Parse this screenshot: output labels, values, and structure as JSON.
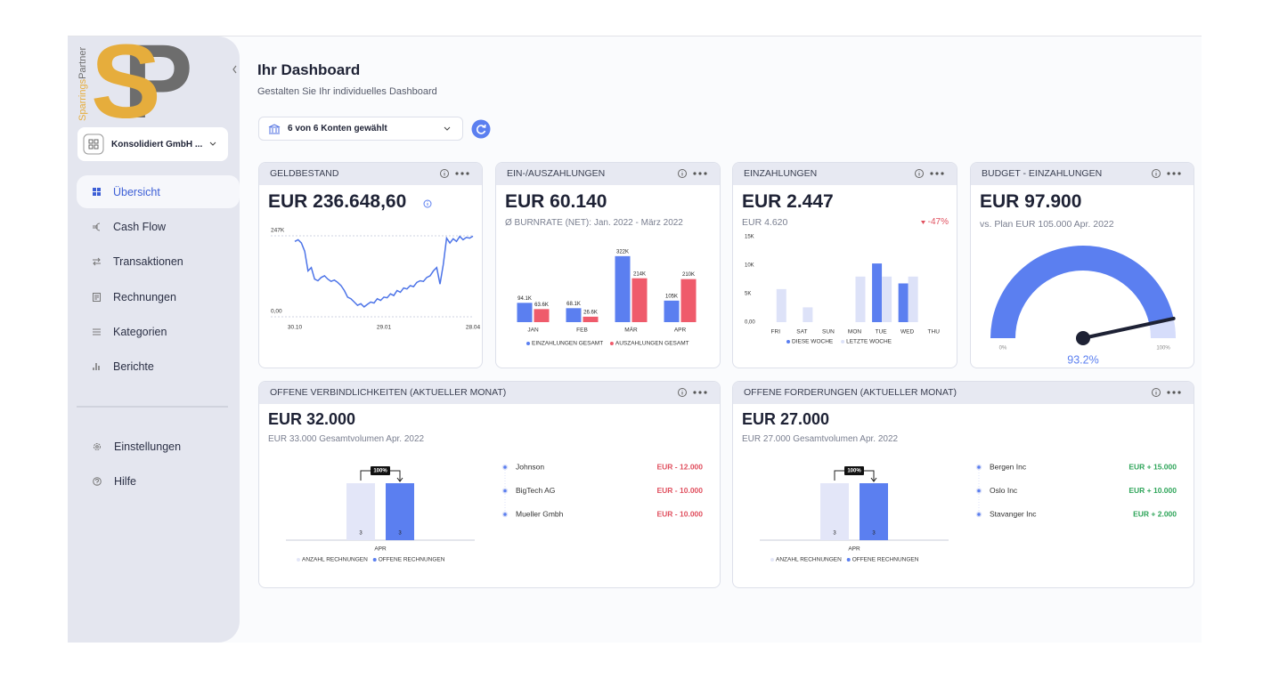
{
  "sidebar": {
    "logo": {
      "letters": [
        "S",
        "P"
      ],
      "wordmark": [
        "Sparrings",
        "Partner"
      ]
    },
    "company": "Konsolidiert GmbH ...",
    "nav": [
      "Übersicht",
      "Cash Flow",
      "Transaktionen",
      "Rechnungen",
      "Kategorien",
      "Berichte"
    ],
    "footer_nav": [
      "Einstellungen",
      "Hilfe"
    ]
  },
  "header": {
    "title": "Ihr Dashboard",
    "subtitle": "Gestalten Sie Ihr individuelles Dashboard",
    "accounts": "6 von 6  Konten gewählt"
  },
  "cards": [
    {
      "title": "GELDBESTAND",
      "amount": "EUR 236.648,60",
      "chart_data": {
        "type": "line",
        "color": "#4d74e8",
        "grid": true,
        "values": [
          230000,
          235000,
          225000,
          200000,
          140000,
          150000,
          115000,
          110000,
          120000,
          125000,
          115000,
          108000,
          112000,
          105000,
          95000,
          80000,
          60000,
          55000,
          45000,
          35000,
          40000,
          30000,
          38000,
          45000,
          42000,
          55000,
          50000,
          60000,
          58000,
          70000,
          65000,
          80000,
          75000,
          88000,
          85000,
          95000,
          92000,
          105000,
          110000,
          108000,
          120000,
          125000,
          140000,
          150000,
          100000,
          160000,
          240000,
          225000,
          238000,
          230000,
          245000,
          235000,
          242000,
          240000,
          246000
        ],
        "xlim": [
          0,
          54
        ],
        "xticks": [
          {
            "value": 0,
            "label": "30.10"
          },
          {
            "value": 27,
            "label": "29.01"
          },
          {
            "value": 54,
            "label": "28.04"
          }
        ],
        "ylim": [
          0,
          247000
        ],
        "yticks": [
          {
            "value": 0,
            "label": "0,00"
          },
          {
            "value": 247000,
            "label": "247K"
          }
        ]
      }
    },
    {
      "title": "EIN-/AUSZAHLUNGEN",
      "amount": "EUR 60.140",
      "subtitle": "Ø BURNRATE (NET): Jan. 2022 - März 2022",
      "chart_data": {
        "type": "bar",
        "categories": [
          "JAN",
          "FEB",
          "MÄR",
          "APR"
        ],
        "series": [
          {
            "name": "EINZAHLUNGEN GESAMT",
            "color": "#5b7ff0",
            "values": [
              94100,
              68100,
              322000,
              105000
            ],
            "value_labels": [
              "94.1K",
              "68.1K",
              "322K",
              "105K"
            ]
          },
          {
            "name": "AUSZAHLUNGEN GESAMT",
            "color": "#ef5b6b",
            "values": [
              63600,
              26600,
              214000,
              210000
            ],
            "value_labels": [
              "63.6K",
              "26.6K",
              "214K",
              "210K"
            ]
          }
        ],
        "ylim": [
          0,
          330000
        ]
      }
    },
    {
      "title": "EINZAHLUNGEN",
      "amount": "EUR 2.447",
      "comparison": "EUR 4.620",
      "change": "-47%",
      "chart_data": {
        "type": "bar",
        "categories": [
          "FRI",
          "SAT",
          "SUN",
          "MON",
          "TUE",
          "WED",
          "THU"
        ],
        "series": [
          {
            "name": "DIESE WOCHE",
            "color": "#5b7ff0",
            "values": [
              null,
              null,
              null,
              null,
              10300,
              6800,
              null
            ]
          },
          {
            "name": "LETZTE WOCHE",
            "color": "#dde2f8",
            "values": [
              5800,
              2600,
              0,
              8000,
              8000,
              8000,
              0
            ]
          }
        ],
        "ylim": [
          0,
          15000
        ],
        "yticks": [
          {
            "value": 0,
            "label": "0,00"
          },
          {
            "value": 5000,
            "label": "5K"
          },
          {
            "value": 10000,
            "label": "10K"
          },
          {
            "value": 15000,
            "label": "15K"
          }
        ]
      }
    },
    {
      "title": "BUDGET - EINZAHLUNGEN",
      "amount": "EUR 97.900",
      "subtitle": "vs. Plan EUR 105.000  Apr. 2022",
      "chart_data": {
        "type": "gauge",
        "value": 93.2,
        "value_label": "93.2%",
        "color": "#5b7ff0",
        "track_color": "#d6ddfb",
        "needle_color": "#1e2235",
        "ylim": [
          0,
          100
        ],
        "yticks": [
          {
            "value": 0,
            "label": "0%"
          },
          {
            "value": 100,
            "label": "100%"
          }
        ]
      }
    },
    {
      "title": "OFFENE VERBINDLICHKEITEN (AKTUELLER MONAT)",
      "amount": "EUR 32.000",
      "subtitle": "EUR 33.000  Gesamtvolumen  Apr. 2022",
      "chart_data": {
        "type": "bar",
        "categories": [
          "APR"
        ],
        "series": [
          {
            "name": "ANZAHL RECHNUNGEN",
            "color": "#e3e6f8",
            "values": [
              3
            ]
          },
          {
            "name": "OFFENE RECHNUNGEN",
            "color": "#5b7ff0",
            "values": [
              3
            ]
          }
        ],
        "ylim": [
          0,
          3
        ],
        "annotation": "100%"
      },
      "list": [
        {
          "name": "Johnson",
          "amount": "EUR - 12.000"
        },
        {
          "name": "BigTech AG",
          "amount": "EUR - 10.000"
        },
        {
          "name": "Mueller Gmbh",
          "amount": "EUR - 10.000"
        }
      ],
      "amount_color": "#e0505f"
    },
    {
      "title": "OFFENE FORDERUNGEN (AKTUELLER MONAT)",
      "amount": "EUR 27.000",
      "subtitle": "EUR 27.000  Gesamtvolumen  Apr. 2022",
      "chart_data": {
        "type": "bar",
        "categories": [
          "APR"
        ],
        "series": [
          {
            "name": "ANZAHL RECHNUNGEN",
            "color": "#e3e6f8",
            "values": [
              3
            ]
          },
          {
            "name": "OFFENE RECHNUNGEN",
            "color": "#5b7ff0",
            "values": [
              3
            ]
          }
        ],
        "ylim": [
          0,
          3
        ],
        "annotation": "100%"
      },
      "list": [
        {
          "name": "Bergen Inc",
          "amount": "EUR + 15.000"
        },
        {
          "name": "Oslo Inc",
          "amount": "EUR + 10.000"
        },
        {
          "name": "Stavanger Inc",
          "amount": "EUR + 2.000"
        }
      ],
      "amount_color": "#2fa55a"
    }
  ]
}
